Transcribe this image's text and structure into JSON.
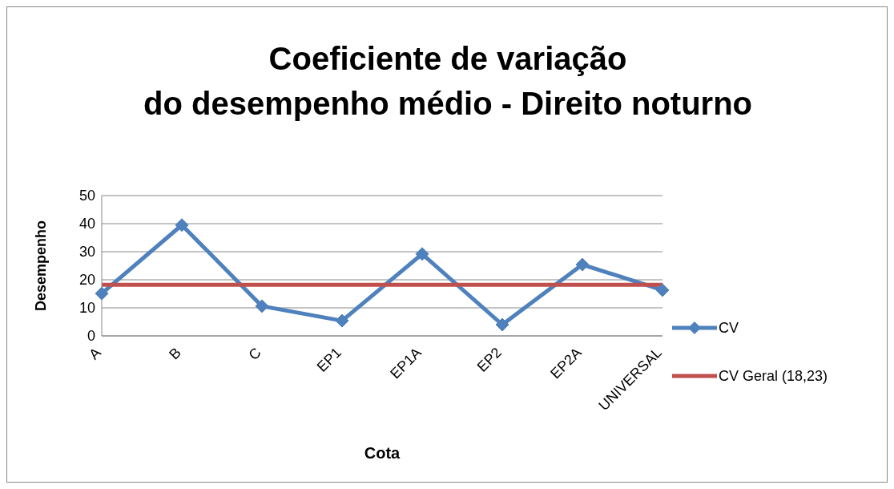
{
  "chart_data": {
    "type": "line",
    "title": "Coeficiente de variação\ndo desempenho médio - Direito noturno",
    "xlabel": "Cota",
    "ylabel": "Desempenho",
    "categories": [
      "A",
      "B",
      "C",
      "EP1",
      "EP1A",
      "EP2",
      "EP2A",
      "UNIVERSAL"
    ],
    "series": [
      {
        "name": "CV",
        "color": "#4f81bd",
        "marker": "diamond",
        "values": [
          15.1,
          39.5,
          10.6,
          5.4,
          29.2,
          4.0,
          25.4,
          16.3
        ]
      },
      {
        "name": "CV Geral (18,23)",
        "color": "#c0504d",
        "marker": "none",
        "values": [
          18.23,
          18.23,
          18.23,
          18.23,
          18.23,
          18.23,
          18.23,
          18.23
        ]
      }
    ],
    "ylim": [
      0,
      50
    ],
    "yticks": [
      0,
      10,
      20,
      30,
      40,
      50
    ],
    "grid": "y",
    "legend": "right",
    "line_style": "solid"
  }
}
